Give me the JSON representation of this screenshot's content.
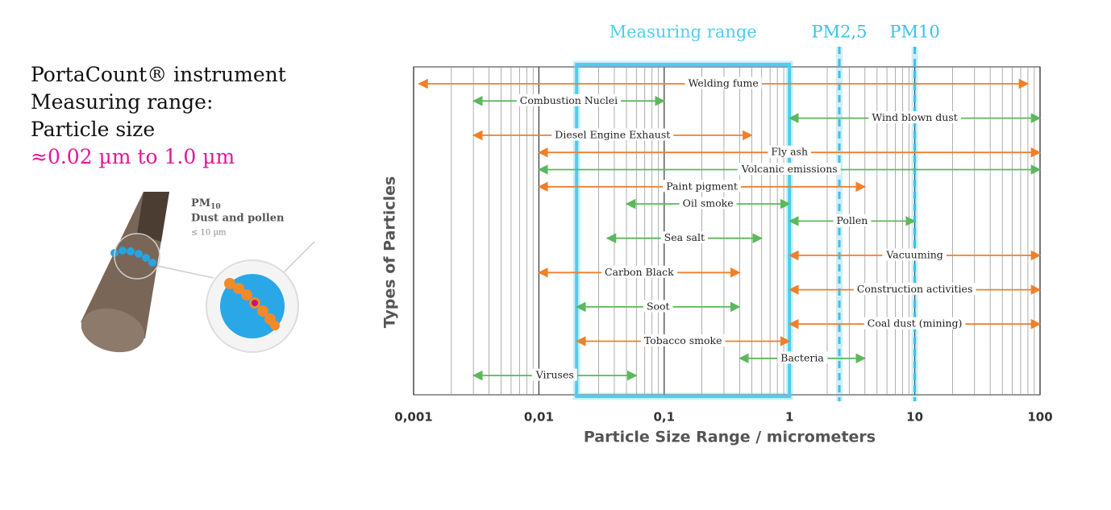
{
  "left_panel": {
    "lines": [
      "PortaCount® instrument",
      "Measuring range:",
      "Particle size"
    ],
    "range_text": "≈0.02 µm  to  1.0 µm",
    "pm_base": "PM",
    "pm_sub": "10",
    "pm_desc": "Dust and pollen",
    "pm_size": "≤ 10 µm"
  },
  "chart_data": {
    "type": "range",
    "x_label": "Particle Size Range / micrometers",
    "y_label": "Types of Particles",
    "xscale": "log",
    "xlim": [
      0.001,
      100
    ],
    "xticks": [
      {
        "value": 0.001,
        "label": "0,001"
      },
      {
        "value": 0.01,
        "label": "0,01"
      },
      {
        "value": 0.1,
        "label": "0,1"
      },
      1,
      10,
      100
    ],
    "grid": "minor",
    "categories": [
      "Welding fume",
      "Combustion Nuclei",
      "Wind blown dust",
      "Diesel Engine Exhaust",
      "Fly ash",
      "Volcanic emissions",
      "Paint pigment",
      "Oil smoke",
      "Pollen",
      "Sea salt",
      "Vacuuming",
      "Carbon Black",
      "Construction activities",
      "Soot",
      "Coal dust (mining)",
      "Tobacco smoke",
      "Bacteria",
      "Viruses"
    ],
    "starts": [
      0.0011,
      0.003,
      1,
      0.003,
      0.01,
      0.01,
      0.01,
      0.05,
      1,
      0.035,
      1,
      0.01,
      1,
      0.02,
      1,
      0.02,
      0.4,
      0.003
    ],
    "ends": [
      80,
      0.1,
      100,
      0.5,
      100,
      100,
      4,
      1,
      10,
      0.6,
      100,
      0.4,
      100,
      0.4,
      100,
      1,
      4,
      0.06
    ],
    "colors": [
      "#f07f2a",
      "#5cb85c",
      "#5cb85c",
      "#f07f2a",
      "#f07f2a",
      "#5cb85c",
      "#f07f2a",
      "#5cb85c",
      "#5cb85c",
      "#5cb85c",
      "#f07f2a",
      "#f07f2a",
      "#f07f2a",
      "#5cb85c",
      "#f07f2a",
      "#f07f2a",
      "#5cb85c",
      "#5cb85c"
    ],
    "measuring_range": {
      "label": "Measuring range",
      "from": 0.02,
      "to": 1,
      "color": "#4fcdf0"
    },
    "markers": [
      {
        "label": "PM2,5",
        "value": 2.5
      },
      {
        "label": "PM10",
        "value": 10
      }
    ],
    "marker_color": "#3cc0ee"
  }
}
